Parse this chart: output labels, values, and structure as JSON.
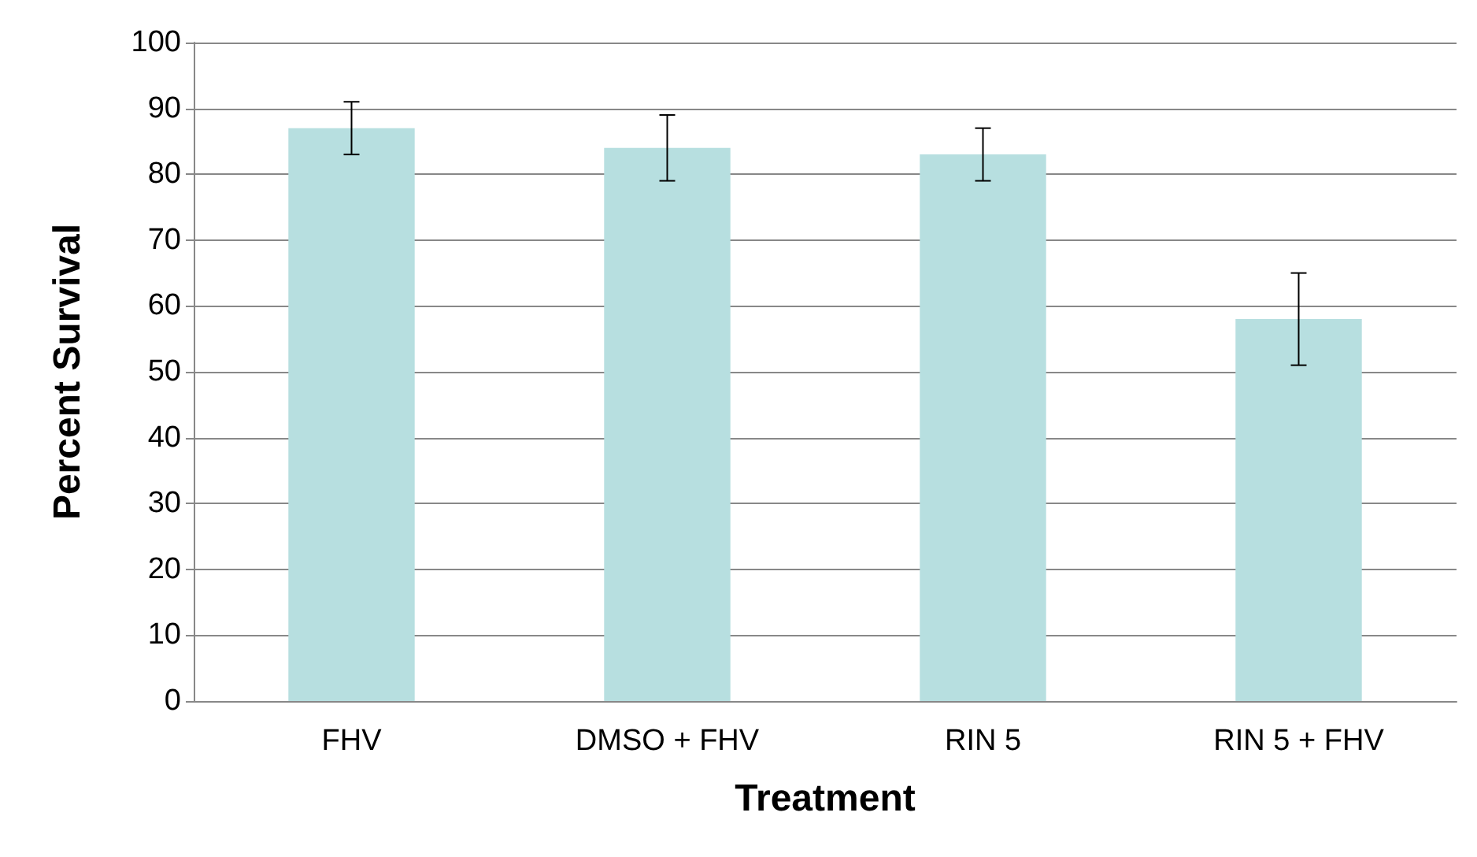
{
  "chart_data": {
    "type": "bar",
    "xlabel": "Treatment",
    "ylabel": "Percent Survival",
    "categories": [
      "FHV",
      "DMSO + FHV",
      "RIN 5",
      "RIN 5 + FHV"
    ],
    "series": [
      {
        "color": "#b7dfe0",
        "values": [
          87,
          84,
          83,
          58
        ],
        "errors": [
          [
            83,
            91
          ],
          [
            79,
            89
          ],
          [
            79,
            87
          ],
          [
            51,
            65
          ]
        ]
      }
    ],
    "ylim": [
      0,
      100
    ],
    "yticks": [
      0,
      10,
      20,
      30,
      40,
      50,
      60,
      70,
      80,
      90,
      100
    ],
    "grid": "y"
  }
}
